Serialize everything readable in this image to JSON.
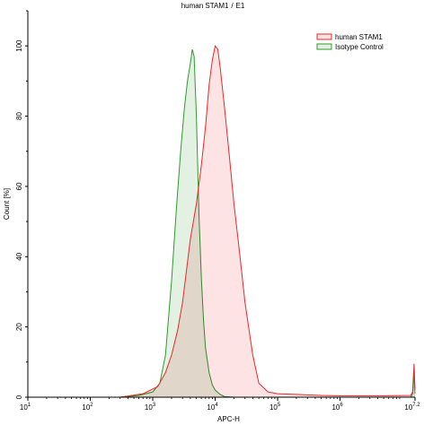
{
  "chart_data": {
    "type": "area",
    "title": {
      "main": "human STAM1",
      "separator": " / ",
      "gate": "E1",
      "gate_color": "#e02020"
    },
    "xlabel": "APC-H",
    "ylabel": "Count [%]",
    "x_scale": "log10",
    "xlim": [
      10,
      15848931.9
    ],
    "ylim": [
      0,
      110
    ],
    "x_ticks": [
      {
        "value": 10,
        "base": "10",
        "exp": "1"
      },
      {
        "value": 100,
        "base": "10",
        "exp": "2"
      },
      {
        "value": 1000,
        "base": "10",
        "exp": "3"
      },
      {
        "value": 10000,
        "base": "10",
        "exp": "4"
      },
      {
        "value": 100000,
        "base": "10",
        "exp": "5"
      },
      {
        "value": 1000000,
        "base": "10",
        "exp": "6"
      },
      {
        "value": 15848931.9,
        "base": "10",
        "exp": "7.2"
      }
    ],
    "y_ticks": [
      0,
      20,
      40,
      60,
      80,
      100
    ],
    "grid": false,
    "legend_position": "top-right",
    "series": [
      {
        "name": "human STAM1",
        "stroke": "#e8282a",
        "fill": "#fde3e3",
        "x": [
          300,
          700,
          1200,
          1600,
          2000,
          2500,
          3000,
          4000,
          5000,
          6000,
          7000,
          8000,
          9000,
          10000,
          11000,
          12000,
          14000,
          17000,
          20000,
          25000,
          30000,
          40000,
          50000,
          70000,
          100000,
          200000,
          500000,
          1000000,
          5000000,
          13500000,
          14500000,
          15300000,
          15848931.9
        ],
        "y": [
          0,
          1,
          3,
          7,
          12,
          19,
          27,
          45,
          55,
          66,
          77,
          89,
          96,
          100,
          99,
          94,
          83,
          68,
          55,
          40,
          27,
          12,
          4,
          1.5,
          1,
          0.8,
          0.5,
          0.4,
          0.4,
          0.5,
          1.5,
          9.5,
          2
        ]
      },
      {
        "name": "Isotype Control",
        "stroke": "#2f9a2f",
        "fill": "#e2f1e2",
        "x": [
          300,
          600,
          1000,
          1300,
          1600,
          2000,
          2400,
          2800,
          3200,
          3600,
          4000,
          4300,
          4600,
          5000,
          5500,
          6000,
          6500,
          7000,
          8000,
          9000,
          10000,
          12000,
          14000,
          20000,
          30000,
          13500000,
          14500000,
          15300000,
          15848931.9
        ],
        "y": [
          0,
          0.5,
          1.5,
          4,
          12,
          33,
          54,
          70,
          82,
          90,
          95,
          99,
          97,
          80,
          52,
          34,
          22,
          14,
          7,
          3.5,
          2,
          0.8,
          0.2,
          0,
          0,
          0,
          1,
          6.5,
          1
        ]
      }
    ]
  }
}
